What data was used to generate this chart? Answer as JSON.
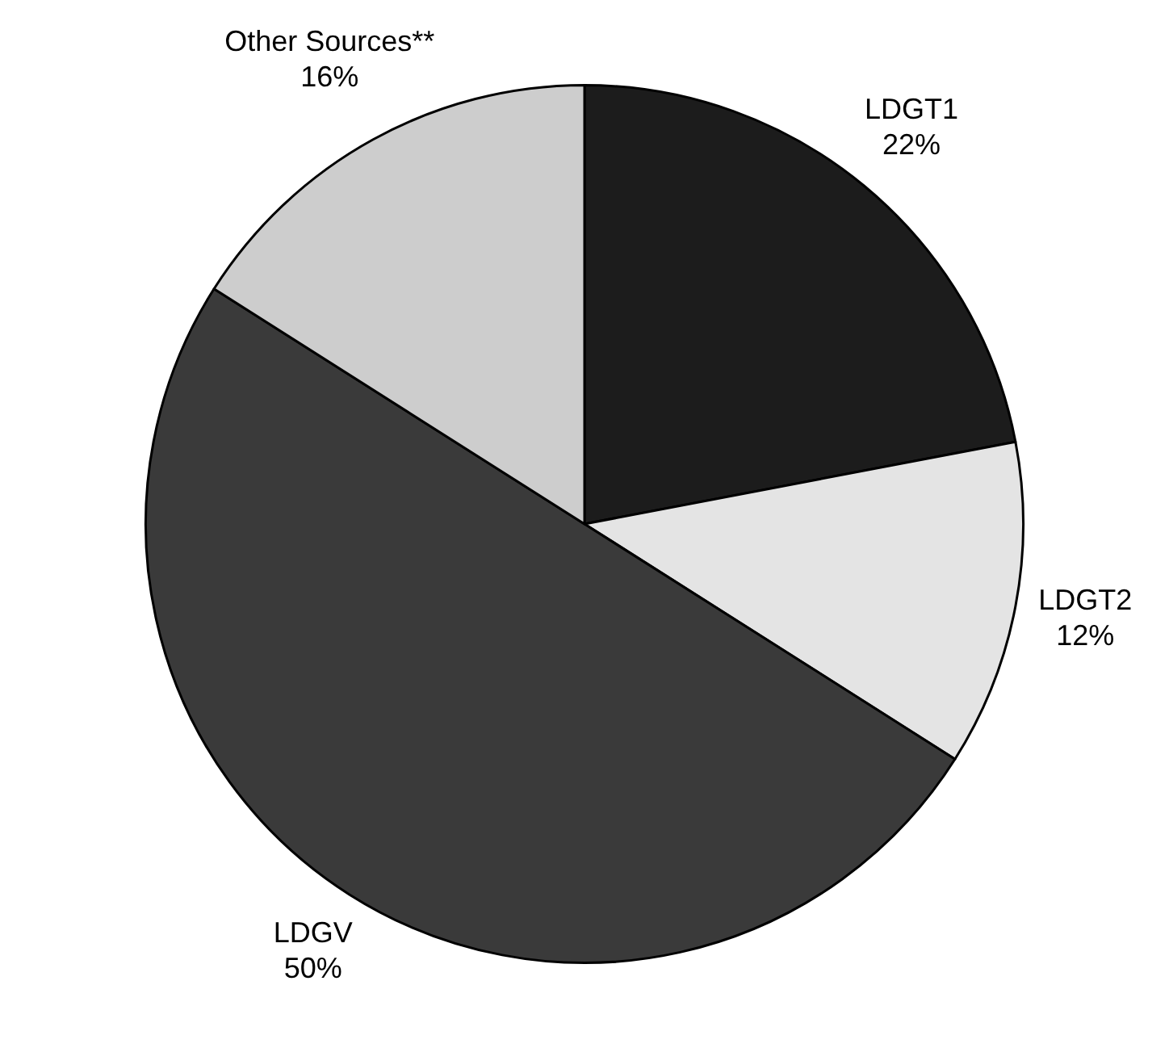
{
  "chart_data": {
    "type": "pie",
    "categories": [
      "LDGT1",
      "LDGT2",
      "LDGV",
      "Other Sources**"
    ],
    "values": [
      22,
      12,
      50,
      16
    ],
    "colors": [
      "#1c1c1c",
      "#e4e4e4",
      "#3a3a3a",
      "#cdcdcd"
    ],
    "value_labels": [
      "22%",
      "12%",
      "50%",
      "16%"
    ],
    "legend": false
  }
}
